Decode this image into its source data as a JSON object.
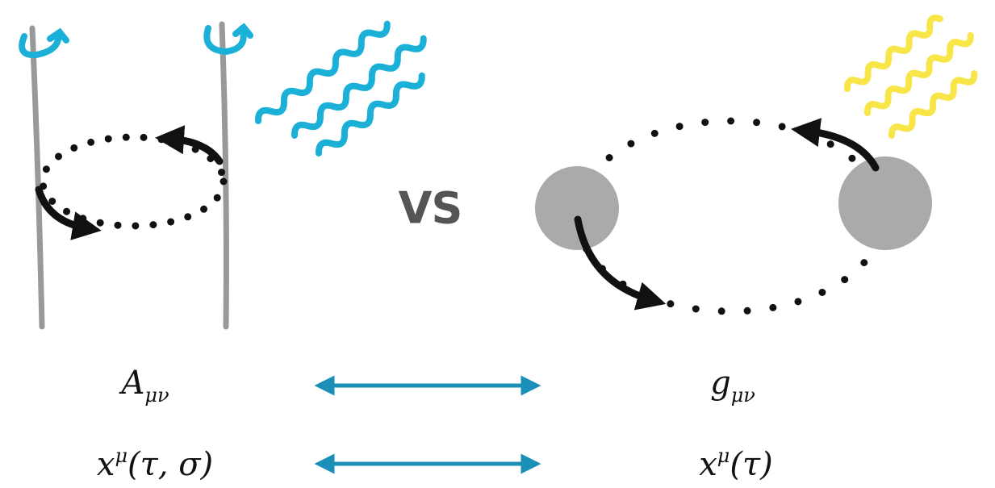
{
  "center_label": "VS",
  "rows": [
    {
      "left": {
        "base": "A",
        "sub": "μν"
      },
      "right": {
        "base": "g",
        "sub": "μν"
      }
    },
    {
      "left": {
        "base": "x",
        "sup": "μ",
        "args": "(τ, σ)"
      },
      "right": {
        "base": "x",
        "sup": "μ",
        "args": "(τ)"
      }
    }
  ]
}
